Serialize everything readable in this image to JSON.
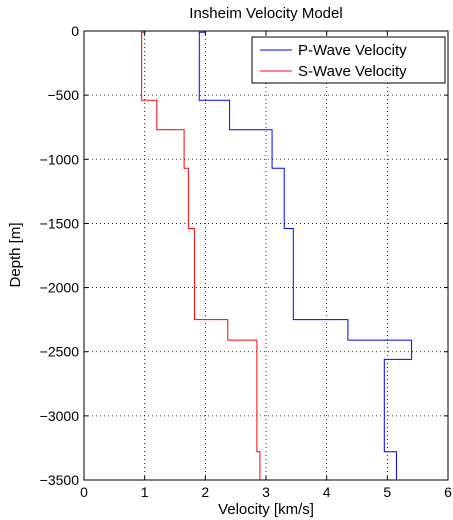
{
  "chart_data": {
    "type": "line",
    "title": "Insheim Velocity Model",
    "xlabel": "Velocity [km/s]",
    "ylabel": "Depth [m]",
    "xlim": [
      0,
      6
    ],
    "ylim": [
      -3500,
      0
    ],
    "xticks": [
      0,
      1,
      2,
      3,
      4,
      5,
      6
    ],
    "yticks": [
      0,
      -500,
      -1000,
      -1500,
      -2000,
      -2500,
      -3000,
      -3500
    ],
    "grid": true,
    "legend_position": "top-right",
    "series": [
      {
        "name": "P-Wave Velocity",
        "color": "#0000ff",
        "points": [
          [
            2.0,
            0
          ],
          [
            2.0,
            -10
          ],
          [
            1.9,
            -10
          ],
          [
            1.9,
            -540
          ],
          [
            2.4,
            -540
          ],
          [
            2.4,
            -770
          ],
          [
            3.1,
            -770
          ],
          [
            3.1,
            -1070
          ],
          [
            3.3,
            -1070
          ],
          [
            3.3,
            -1540
          ],
          [
            3.45,
            -1540
          ],
          [
            3.45,
            -2250
          ],
          [
            4.35,
            -2250
          ],
          [
            4.35,
            -2410
          ],
          [
            5.4,
            -2410
          ],
          [
            5.4,
            -2560
          ],
          [
            4.95,
            -2560
          ],
          [
            4.95,
            -3280
          ],
          [
            5.15,
            -3280
          ],
          [
            5.15,
            -3500
          ],
          [
            6.0,
            -3500
          ]
        ]
      },
      {
        "name": "S-Wave Velocity",
        "color": "#ff0000",
        "points": [
          [
            1.0,
            0
          ],
          [
            1.0,
            -10
          ],
          [
            0.95,
            -10
          ],
          [
            0.95,
            -540
          ],
          [
            1.2,
            -540
          ],
          [
            1.2,
            -770
          ],
          [
            1.65,
            -770
          ],
          [
            1.65,
            -1070
          ],
          [
            1.72,
            -1070
          ],
          [
            1.72,
            -1540
          ],
          [
            1.82,
            -1540
          ],
          [
            1.82,
            -2250
          ],
          [
            2.37,
            -2250
          ],
          [
            2.37,
            -2410
          ],
          [
            2.85,
            -2410
          ],
          [
            2.85,
            -3280
          ],
          [
            2.9,
            -3280
          ],
          [
            2.9,
            -3500
          ],
          [
            3.45,
            -3500
          ]
        ]
      }
    ]
  }
}
